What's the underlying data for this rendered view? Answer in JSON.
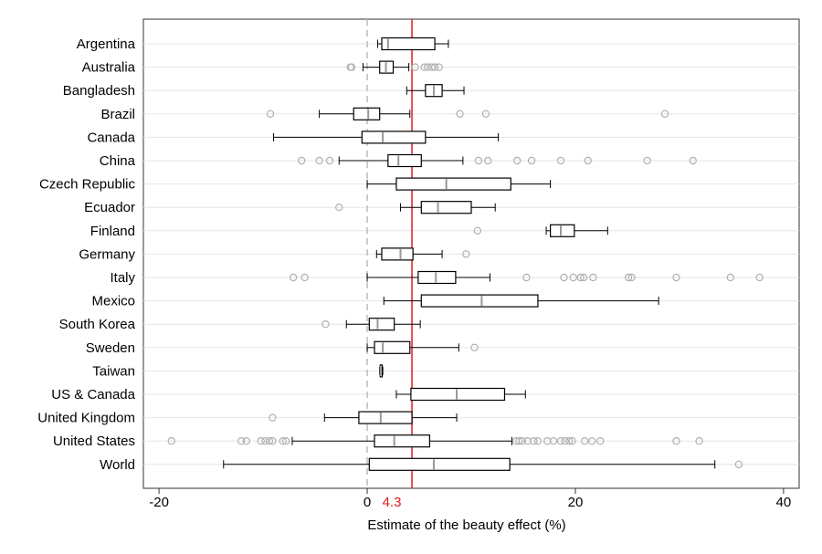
{
  "chart_data": {
    "type": "boxplot",
    "orientation": "horizontal",
    "title": "",
    "xlabel": "Estimate of the beauty effect (%)",
    "ylabel": "",
    "xlim": [
      -21.5,
      41.5
    ],
    "xticks": [
      -20,
      0,
      20,
      40
    ],
    "grid": true,
    "legend": "none",
    "reference_lines": {
      "zero": {
        "value": 0,
        "color": "#bbbbbb",
        "style": "dashed"
      },
      "mean": {
        "value": 4.3,
        "label": "4.3",
        "color": "#e41a1c"
      }
    },
    "colors": {
      "box": "#000000",
      "median": "#999999",
      "outlier": "#b0b0b0",
      "grid": "#e6e6e6"
    },
    "categories": [
      {
        "name": "Argentina",
        "whisker_low": 1.0,
        "q1": 1.4,
        "median": 2.0,
        "q3": 6.5,
        "whisker_high": 7.8,
        "outliers": []
      },
      {
        "name": "Australia",
        "whisker_low": -0.4,
        "q1": 1.2,
        "median": 1.8,
        "q3": 2.5,
        "whisker_high": 4.0,
        "outliers": [
          -1.6,
          -1.5,
          4.6,
          5.5,
          5.8,
          6.2,
          6.5,
          6.9
        ]
      },
      {
        "name": "Bangladesh",
        "whisker_low": 3.8,
        "q1": 5.6,
        "median": 6.4,
        "q3": 7.2,
        "whisker_high": 9.3,
        "outliers": []
      },
      {
        "name": "Brazil",
        "whisker_low": -4.6,
        "q1": -1.3,
        "median": 0.1,
        "q3": 1.2,
        "whisker_high": 4.1,
        "outliers": [
          -9.3,
          8.9,
          11.4,
          28.6
        ]
      },
      {
        "name": "Canada",
        "whisker_low": -9.0,
        "q1": -0.5,
        "median": 1.5,
        "q3": 5.6,
        "whisker_high": 12.6,
        "outliers": []
      },
      {
        "name": "China",
        "whisker_low": -2.7,
        "q1": 2.0,
        "median": 3.0,
        "q3": 5.2,
        "whisker_high": 9.2,
        "outliers": [
          -6.3,
          -4.6,
          -3.6,
          10.7,
          11.6,
          14.4,
          15.8,
          18.6,
          21.2,
          26.9,
          31.3
        ]
      },
      {
        "name": "Czech Republic",
        "whisker_low": 0.0,
        "q1": 2.8,
        "median": 7.6,
        "q3": 13.8,
        "whisker_high": 17.6,
        "outliers": []
      },
      {
        "name": "Ecuador",
        "whisker_low": 3.2,
        "q1": 5.2,
        "median": 6.8,
        "q3": 10.0,
        "whisker_high": 12.3,
        "outliers": [
          -2.7
        ]
      },
      {
        "name": "Finland",
        "whisker_low": 17.2,
        "q1": 17.6,
        "median": 18.6,
        "q3": 19.9,
        "whisker_high": 23.1,
        "outliers": [
          10.6
        ]
      },
      {
        "name": "Germany",
        "whisker_low": 0.9,
        "q1": 1.4,
        "median": 3.2,
        "q3": 4.4,
        "whisker_high": 7.2,
        "outliers": [
          9.5
        ]
      },
      {
        "name": "Italy",
        "whisker_low": 0.0,
        "q1": 4.9,
        "median": 6.6,
        "q3": 8.5,
        "whisker_high": 11.8,
        "outliers": [
          -7.1,
          -6.0,
          15.3,
          18.9,
          19.8,
          20.5,
          20.8,
          21.7,
          25.1,
          25.4,
          29.7,
          34.9,
          37.7
        ]
      },
      {
        "name": "Mexico",
        "whisker_low": 1.6,
        "q1": 5.2,
        "median": 11.0,
        "q3": 16.4,
        "whisker_high": 28.0,
        "outliers": []
      },
      {
        "name": "South Korea",
        "whisker_low": -2.0,
        "q1": 0.2,
        "median": 1.0,
        "q3": 2.6,
        "whisker_high": 5.1,
        "outliers": [
          -4.0
        ]
      },
      {
        "name": "Sweden",
        "whisker_low": 0.0,
        "q1": 0.7,
        "median": 1.5,
        "q3": 4.1,
        "whisker_high": 8.8,
        "outliers": [
          10.3
        ]
      },
      {
        "name": "Taiwan",
        "whisker_low": 1.2,
        "q1": 1.25,
        "median": 1.3,
        "q3": 1.45,
        "whisker_high": 1.5,
        "outliers": []
      },
      {
        "name": "US & Canada",
        "whisker_low": 2.8,
        "q1": 4.2,
        "median": 8.6,
        "q3": 13.2,
        "whisker_high": 15.2,
        "outliers": []
      },
      {
        "name": "United Kingdom",
        "whisker_low": -4.1,
        "q1": -0.8,
        "median": 1.3,
        "q3": 4.3,
        "whisker_high": 8.6,
        "outliers": [
          -9.1
        ]
      },
      {
        "name": "United States",
        "whisker_low": -7.2,
        "q1": 0.7,
        "median": 2.6,
        "q3": 6.0,
        "whisker_high": 13.9,
        "outliers": [
          -18.8,
          -12.1,
          -11.6,
          -10.2,
          -9.8,
          -9.4,
          -9.1,
          -8.1,
          -7.8,
          14.3,
          14.6,
          14.9,
          15.4,
          16.0,
          16.4,
          17.3,
          17.9,
          18.6,
          19.0,
          19.4,
          19.7,
          20.9,
          21.6,
          22.4,
          29.7,
          31.9
        ]
      },
      {
        "name": "World",
        "whisker_low": -13.8,
        "q1": 0.2,
        "median": 6.4,
        "q3": 13.7,
        "whisker_high": 33.4,
        "outliers": [
          35.7
        ]
      }
    ]
  }
}
